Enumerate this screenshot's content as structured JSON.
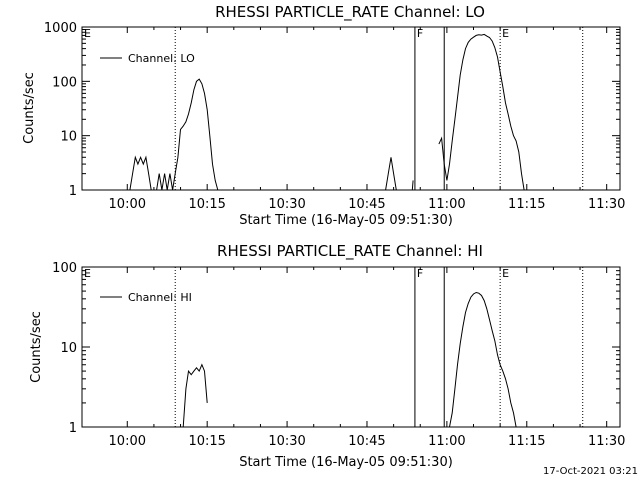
{
  "chart_data": [
    {
      "type": "line",
      "title": "RHESSI PARTICLE_RATE Channel: LO",
      "xlabel": "Start Time (16-May-05 09:51:30)",
      "ylabel": "Counts/sec",
      "y_scale": "log",
      "ylim": [
        1,
        1000
      ],
      "xlim": [
        "09:51:30",
        "11:32:30"
      ],
      "xticks": [
        "10:00",
        "10:15",
        "10:30",
        "10:45",
        "11:00",
        "11:15",
        "11:30"
      ],
      "yticks": [
        "1",
        "10",
        "100",
        "1000"
      ],
      "legend": "Channel: LO",
      "legend_position": "top-left",
      "markers": [
        {
          "label": "E",
          "time": "09:51:30",
          "style": "dotted"
        },
        {
          "label": "",
          "time": "10:09:00",
          "style": "dotted"
        },
        {
          "label": "F",
          "time": "10:54:00",
          "style": "solid"
        },
        {
          "label": "",
          "time": "10:59:30",
          "style": "solid"
        },
        {
          "label": "E",
          "time": "11:10:00",
          "style": "dotted"
        },
        {
          "label": "",
          "time": "11:25:30",
          "style": "dotted"
        }
      ],
      "series": [
        {
          "segments": [
            [
              [
                "10:00:30",
                1
              ],
              [
                "10:01:00",
                2
              ],
              [
                "10:01:30",
                4
              ],
              [
                "10:02:00",
                3
              ],
              [
                "10:02:30",
                4
              ],
              [
                "10:03:00",
                3
              ],
              [
                "10:03:30",
                4
              ],
              [
                "10:04:00",
                2
              ],
              [
                "10:04:30",
                1
              ]
            ],
            [
              [
                "10:05:30",
                1
              ],
              [
                "10:06:00",
                2
              ],
              [
                "10:06:30",
                1
              ],
              [
                "10:07:00",
                2
              ],
              [
                "10:07:30",
                1
              ],
              [
                "10:08:00",
                2
              ],
              [
                "10:08:30",
                1
              ],
              [
                "10:09:00",
                2
              ],
              [
                "10:09:30",
                4
              ],
              [
                "10:10:00",
                13
              ],
              [
                "10:10:30",
                15
              ],
              [
                "10:11:00",
                18
              ],
              [
                "10:11:30",
                25
              ],
              [
                "10:12:00",
                40
              ],
              [
                "10:12:30",
                70
              ],
              [
                "10:13:00",
                100
              ],
              [
                "10:13:30",
                110
              ],
              [
                "10:14:00",
                90
              ],
              [
                "10:14:30",
                60
              ],
              [
                "10:15:00",
                30
              ],
              [
                "10:15:30",
                10
              ],
              [
                "10:16:00",
                3
              ],
              [
                "10:16:30",
                1.5
              ],
              [
                "10:17:00",
                1
              ]
            ],
            [
              [
                "10:48:30",
                1
              ],
              [
                "10:49:00",
                2
              ],
              [
                "10:49:30",
                4
              ],
              [
                "10:50:00",
                2
              ],
              [
                "10:50:30",
                1
              ]
            ],
            [
              [
                "10:53:30",
                1
              ],
              [
                "10:53:40",
                1.5
              ]
            ],
            [
              [
                "10:58:30",
                7
              ],
              [
                "10:59:00",
                9
              ],
              [
                "10:59:30",
                3
              ],
              [
                "11:00:00",
                1.5
              ],
              [
                "11:00:30",
                3
              ],
              [
                "11:01:00",
                8
              ],
              [
                "11:01:30",
                20
              ],
              [
                "11:02:00",
                50
              ],
              [
                "11:02:30",
                130
              ],
              [
                "11:03:00",
                250
              ],
              [
                "11:03:30",
                400
              ],
              [
                "11:04:00",
                520
              ],
              [
                "11:04:30",
                600
              ],
              [
                "11:05:00",
                650
              ],
              [
                "11:05:30",
                700
              ],
              [
                "11:06:00",
                720
              ],
              [
                "11:06:30",
                710
              ],
              [
                "11:07:00",
                730
              ],
              [
                "11:07:30",
                680
              ],
              [
                "11:08:00",
                640
              ],
              [
                "11:08:30",
                550
              ],
              [
                "11:09:00",
                420
              ],
              [
                "11:09:30",
                280
              ],
              [
                "11:10:00",
                150
              ],
              [
                "11:10:30",
                80
              ],
              [
                "11:11:00",
                40
              ],
              [
                "11:11:30",
                25
              ],
              [
                "11:12:00",
                15
              ],
              [
                "11:12:30",
                10
              ],
              [
                "11:13:00",
                8
              ],
              [
                "11:13:30",
                5
              ],
              [
                "11:14:00",
                2
              ],
              [
                "11:14:30",
                1
              ]
            ]
          ]
        }
      ]
    },
    {
      "type": "line",
      "title": "RHESSI PARTICLE_RATE Channel: HI",
      "xlabel": "Start Time (16-May-05 09:51:30)",
      "ylabel": "Counts/sec",
      "y_scale": "log",
      "ylim": [
        1,
        100
      ],
      "xlim": [
        "09:51:30",
        "11:32:30"
      ],
      "xticks": [
        "10:00",
        "10:15",
        "10:30",
        "10:45",
        "11:00",
        "11:15",
        "11:30"
      ],
      "yticks": [
        "1",
        "10",
        "100"
      ],
      "legend": "Channel: HI",
      "legend_position": "top-left",
      "markers": [
        {
          "label": "E",
          "time": "09:51:30",
          "style": "dotted"
        },
        {
          "label": "",
          "time": "10:09:00",
          "style": "dotted"
        },
        {
          "label": "F",
          "time": "10:54:00",
          "style": "solid"
        },
        {
          "label": "",
          "time": "10:59:30",
          "style": "solid"
        },
        {
          "label": "E",
          "time": "11:10:00",
          "style": "dotted"
        },
        {
          "label": "",
          "time": "11:25:30",
          "style": "dotted"
        }
      ],
      "series": [
        {
          "segments": [
            [
              [
                "10:10:30",
                1
              ],
              [
                "10:11:00",
                3
              ],
              [
                "10:11:30",
                5
              ],
              [
                "10:12:00",
                4.5
              ],
              [
                "10:12:30",
                5
              ],
              [
                "10:13:00",
                5.5
              ],
              [
                "10:13:30",
                5
              ],
              [
                "10:14:00",
                6
              ],
              [
                "10:14:30",
                5
              ],
              [
                "10:15:00",
                2
              ]
            ],
            [
              [
                "11:00:30",
                1
              ],
              [
                "11:01:00",
                1.5
              ],
              [
                "11:01:30",
                3
              ],
              [
                "11:02:00",
                6
              ],
              [
                "11:02:30",
                11
              ],
              [
                "11:03:00",
                18
              ],
              [
                "11:03:30",
                27
              ],
              [
                "11:04:00",
                35
              ],
              [
                "11:04:30",
                42
              ],
              [
                "11:05:00",
                46
              ],
              [
                "11:05:30",
                48
              ],
              [
                "11:06:00",
                47
              ],
              [
                "11:06:30",
                44
              ],
              [
                "11:07:00",
                38
              ],
              [
                "11:07:30",
                30
              ],
              [
                "11:08:00",
                22
              ],
              [
                "11:08:30",
                16
              ],
              [
                "11:09:00",
                12
              ],
              [
                "11:09:30",
                8
              ],
              [
                "11:10:00",
                6
              ],
              [
                "11:10:30",
                5
              ],
              [
                "11:11:00",
                4
              ],
              [
                "11:11:30",
                3
              ],
              [
                "11:12:00",
                2
              ],
              [
                "11:12:30",
                1.5
              ],
              [
                "11:13:00",
                1
              ]
            ]
          ]
        }
      ]
    }
  ],
  "footer": {
    "timestamp": "17-Oct-2021 03:21"
  }
}
